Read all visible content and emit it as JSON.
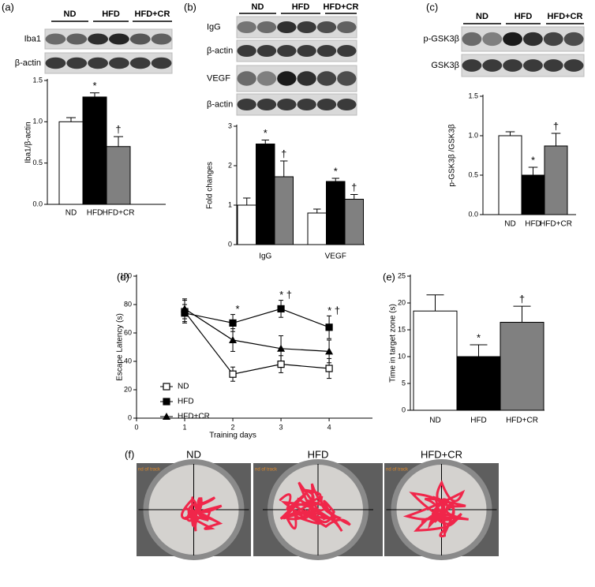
{
  "panel_labels": [
    "(a)",
    "(b)",
    "(c)",
    "(d)",
    "(e)",
    "(f)"
  ],
  "blots": [
    {
      "lanes": [
        "ND",
        "HFD",
        "HFD+CR"
      ],
      "rows": [
        "Iba1",
        "β-actin"
      ]
    },
    {
      "lanes": [
        "ND",
        "HFD",
        "HFD+CR"
      ],
      "rows": [
        "IgG",
        "β-actin",
        "VEGF",
        "β-actin"
      ]
    },
    {
      "lanes": [
        "ND",
        "HFD",
        "HFD+CR"
      ],
      "rows": [
        "p-GSK3β",
        "GSK3β"
      ]
    }
  ],
  "chart_data": [
    {
      "type": "bar",
      "ylabel": "Iba1/β-actin",
      "categories": [
        "ND",
        "HFD",
        "HFD+CR"
      ],
      "values": [
        1.0,
        1.3,
        0.7
      ],
      "errors": [
        0.05,
        0.05,
        0.12
      ],
      "colors": [
        "#ffffff",
        "#000000",
        "#808080"
      ],
      "annotations": [
        null,
        "*",
        "†"
      ],
      "ylim": [
        0,
        1.5
      ],
      "yticks": [
        {
          "value": 0,
          "label": "0.0"
        },
        {
          "value": 0.5,
          "label": "0.5"
        },
        {
          "value": 1,
          "label": "1.0"
        },
        {
          "value": 1.5,
          "label": "1.5"
        }
      ]
    },
    {
      "type": "bar",
      "ylabel": "Fold changes",
      "categories": [
        "IgG",
        "VEGF"
      ],
      "series": [
        {
          "color": "#ffffff",
          "values": [
            1.0,
            0.8
          ],
          "errors": [
            0.18,
            0.1
          ],
          "annotations": [
            null,
            null
          ]
        },
        {
          "color": "#000000",
          "values": [
            2.55,
            1.6
          ],
          "errors": [
            0.1,
            0.08
          ],
          "annotations": [
            "*",
            "*"
          ]
        },
        {
          "color": "#808080",
          "values": [
            1.72,
            1.15
          ],
          "errors": [
            0.4,
            0.12
          ],
          "annotations": [
            "†",
            "†"
          ]
        }
      ],
      "ylim": [
        0,
        3
      ],
      "yticks": [
        0,
        1,
        2,
        3
      ]
    },
    {
      "type": "bar",
      "ylabel": "p-GSK3β /GSK3β",
      "categories": [
        "ND",
        "HFD",
        "HFD+CR"
      ],
      "values": [
        1.0,
        0.5,
        0.87
      ],
      "errors": [
        0.05,
        0.1,
        0.16
      ],
      "colors": [
        "#ffffff",
        "#000000",
        "#808080"
      ],
      "annotations": [
        null,
        "*",
        "†"
      ],
      "ylim": [
        0,
        1.5
      ],
      "yticks": [
        {
          "value": 0,
          "label": "0.0"
        },
        {
          "value": 0.5,
          "label": "0.5"
        },
        {
          "value": 1,
          "label": "1.0"
        },
        {
          "value": 1.5,
          "label": "1.5"
        }
      ]
    },
    {
      "type": "line",
      "xlabel": "Training days",
      "ylabel": "Escape Latency (s)",
      "x": [
        1,
        2,
        3,
        4
      ],
      "series": [
        {
          "name": "ND",
          "marker": "open-square",
          "color": "#000000",
          "values": [
            75,
            31,
            38,
            35
          ],
          "errors": [
            8,
            5,
            6,
            7
          ]
        },
        {
          "name": "HFD",
          "marker": "square",
          "color": "#000000",
          "values": [
            74,
            67,
            77,
            64
          ],
          "errors": [
            6,
            6,
            6,
            8
          ]
        },
        {
          "name": "HFD+CR",
          "marker": "triangle",
          "color": "#000000",
          "values": [
            77,
            55,
            49,
            47
          ],
          "errors": [
            7,
            8,
            9,
            8
          ]
        }
      ],
      "annotations": [
        null,
        "*",
        "* †",
        "* †"
      ],
      "xlim": [
        0,
        4.9
      ],
      "xticks": [
        0,
        1,
        2,
        3,
        4
      ],
      "ylim": [
        0,
        100
      ],
      "yticks": [
        0,
        20,
        40,
        60,
        80,
        100
      ],
      "legend": "lower left"
    },
    {
      "type": "bar",
      "ylabel": "Time in target zone (s)",
      "categories": [
        "ND",
        "HFD",
        "HFD+CR"
      ],
      "values": [
        18.5,
        10,
        16.4
      ],
      "errors": [
        3,
        2.2,
        3
      ],
      "colors": [
        "#ffffff",
        "#000000",
        "#808080"
      ],
      "annotations": [
        null,
        "*",
        "†"
      ],
      "ylim": [
        0,
        25
      ],
      "yticks": [
        0,
        5,
        10,
        15,
        20,
        25
      ]
    }
  ],
  "maze": {
    "titles": [
      "ND",
      "HFD",
      "HFD+CR"
    ],
    "overlay": [
      "nd of track",
      "nd of track",
      "nd of track"
    ]
  }
}
